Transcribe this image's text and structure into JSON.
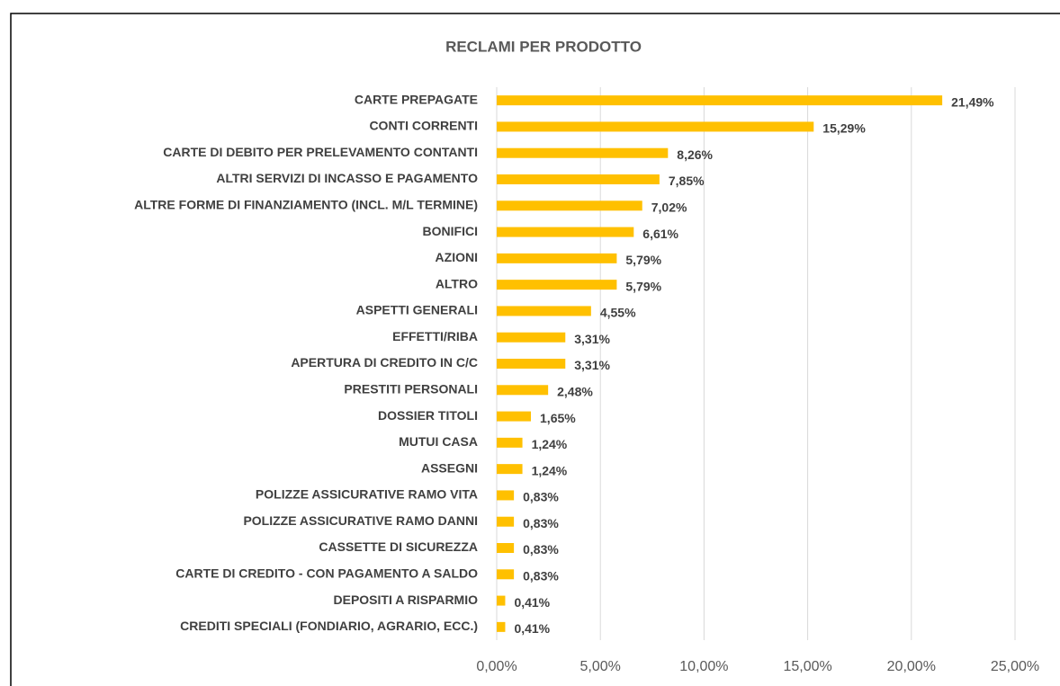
{
  "chart_data": {
    "type": "bar",
    "orientation": "horizontal",
    "title": "RECLAMI PER PRODOTTO",
    "categories": [
      "CARTE PREPAGATE",
      "CONTI CORRENTI",
      "CARTE DI DEBITO PER PRELEVAMENTO CONTANTI",
      "ALTRI SERVIZI DI INCASSO E PAGAMENTO",
      "ALTRE FORME DI FINANZIAMENTO (INCL. M/L TERMINE)",
      "BONIFICI",
      "AZIONI",
      "ALTRO",
      "ASPETTI GENERALI",
      "EFFETTI/RIBA",
      "APERTURA DI CREDITO IN C/C",
      "PRESTITI PERSONALI",
      "DOSSIER TITOLI",
      "MUTUI CASA",
      "ASSEGNI",
      "POLIZZE ASSICURATIVE RAMO VITA",
      "POLIZZE ASSICURATIVE RAMO DANNI",
      "CASSETTE DI SICUREZZA",
      "CARTE DI CREDITO - CON PAGAMENTO A SALDO",
      "DEPOSITI A RISPARMIO",
      "CREDITI SPECIALI (FONDIARIO, AGRARIO, ECC.)"
    ],
    "values": [
      21.49,
      15.29,
      8.26,
      7.85,
      7.02,
      6.61,
      5.79,
      5.79,
      4.55,
      3.31,
      3.31,
      2.48,
      1.65,
      1.24,
      1.24,
      0.83,
      0.83,
      0.83,
      0.83,
      0.41,
      0.41
    ],
    "value_labels": [
      "21,49%",
      "15,29%",
      "8,26%",
      "7,85%",
      "7,02%",
      "6,61%",
      "5,79%",
      "5,79%",
      "4,55%",
      "3,31%",
      "3,31%",
      "2,48%",
      "1,65%",
      "1,24%",
      "1,24%",
      "0,83%",
      "0,83%",
      "0,83%",
      "0,83%",
      "0,41%",
      "0,41%"
    ],
    "color": "#ffc000",
    "xlim": [
      0,
      25
    ],
    "xticks": [
      {
        "value": 0,
        "label": "0,00%"
      },
      {
        "value": 5,
        "label": "5,00%"
      },
      {
        "value": 10,
        "label": "10,00%"
      },
      {
        "value": 15,
        "label": "15,00%"
      },
      {
        "value": 20,
        "label": "20,00%"
      },
      {
        "value": 25,
        "label": "25,00%"
      }
    ],
    "grid": true
  }
}
